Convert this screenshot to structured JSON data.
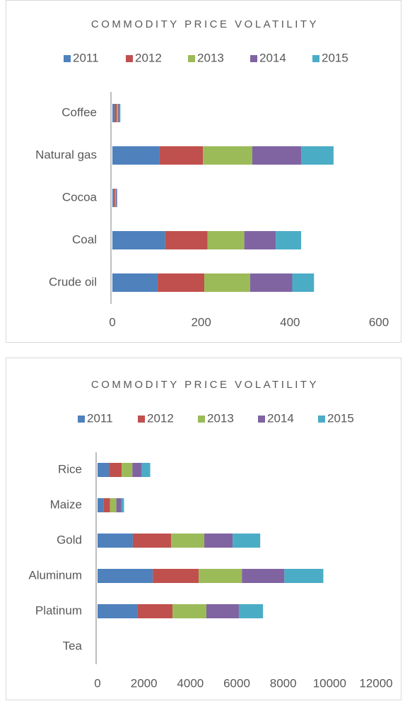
{
  "chart_data": [
    {
      "type": "bar",
      "orientation": "horizontal",
      "stacked": true,
      "title": "COMMODITY PRICE VOLATILITY",
      "categories": [
        "Crude oil",
        "Coal",
        "Cocoa",
        "Natural gas",
        "Coffee"
      ],
      "series": [
        {
          "name": "2011",
          "color": "#4f81bd",
          "values": [
            102,
            119,
            3,
            106,
            5
          ]
        },
        {
          "name": "2012",
          "color": "#c0504d",
          "values": [
            105,
            95,
            3,
            98,
            5
          ]
        },
        {
          "name": "2013",
          "color": "#9bbb59",
          "values": [
            103,
            83,
            2,
            111,
            3
          ]
        },
        {
          "name": "2014",
          "color": "#8064a2",
          "values": [
            95,
            71,
            2,
            110,
            3
          ]
        },
        {
          "name": "2015",
          "color": "#4bacc6",
          "values": [
            49,
            57,
            1,
            73,
            2
          ]
        }
      ],
      "xlim": [
        0,
        600
      ],
      "xticks": [
        0,
        200,
        400,
        600
      ],
      "legend": "top"
    },
    {
      "type": "bar",
      "orientation": "horizontal",
      "stacked": true,
      "title": "COMMODITY PRICE VOLATILITY",
      "categories": [
        "Tea",
        "Platinum",
        "Aluminum",
        "Gold",
        "Maize",
        "Rice"
      ],
      "series": [
        {
          "name": "2011",
          "color": "#4f81bd",
          "values": [
            0,
            1710,
            2380,
            1520,
            270,
            490
          ]
        },
        {
          "name": "2012",
          "color": "#c0504d",
          "values": [
            0,
            1520,
            1980,
            1650,
            270,
            550
          ]
        },
        {
          "name": "2013",
          "color": "#9bbb59",
          "values": [
            0,
            1460,
            1860,
            1430,
            270,
            460
          ]
        },
        {
          "name": "2014",
          "color": "#8064a2",
          "values": [
            0,
            1400,
            1830,
            1220,
            210,
            400
          ]
        },
        {
          "name": "2015",
          "color": "#4bacc6",
          "values": [
            0,
            1040,
            1680,
            1190,
            120,
            370
          ]
        }
      ],
      "xlim": [
        0,
        12000
      ],
      "xticks": [
        0,
        2000,
        4000,
        6000,
        8000,
        10000,
        12000
      ],
      "legend": "top"
    }
  ]
}
